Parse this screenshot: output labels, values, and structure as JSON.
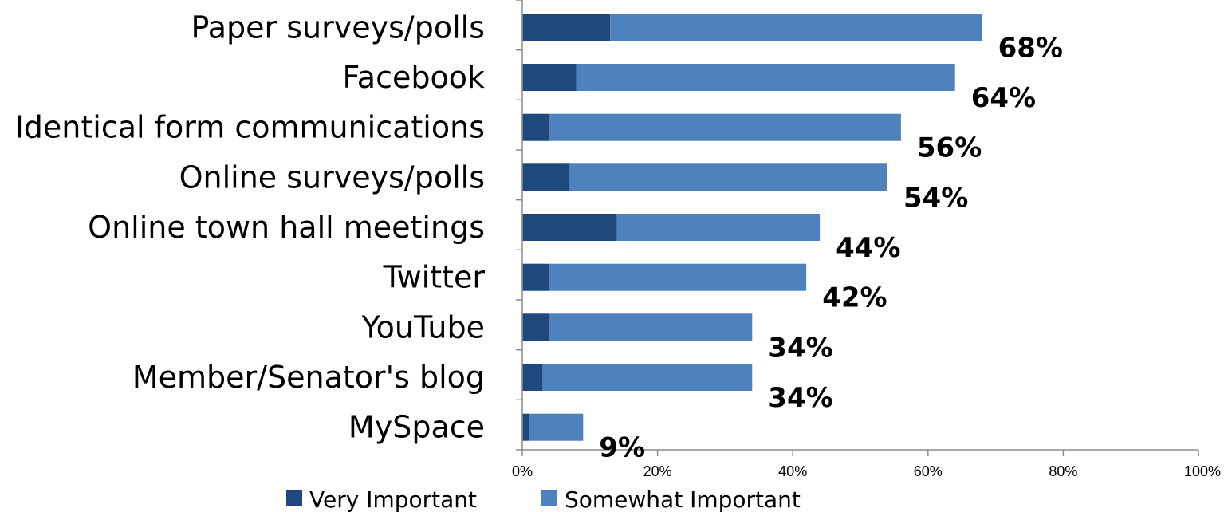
{
  "chart_data": {
    "type": "bar",
    "orientation": "horizontal",
    "stacked": true,
    "categories": [
      "Paper surveys/polls",
      "Facebook",
      "Identical form communications",
      "Online surveys/polls",
      "Online town hall meetings",
      "Twitter",
      "YouTube",
      "Member/Senator's blog",
      "MySpace"
    ],
    "series": [
      {
        "name": "Very Important",
        "color": "#1f497d",
        "values": [
          13,
          8,
          4,
          7,
          14,
          4,
          4,
          3,
          1
        ]
      },
      {
        "name": "Somewhat Important",
        "color": "#4f81bd",
        "values": [
          55,
          56,
          52,
          47,
          30,
          38,
          30,
          31,
          8
        ]
      }
    ],
    "totals": [
      68,
      64,
      56,
      54,
      44,
      42,
      34,
      34,
      9
    ],
    "data_labels": [
      "68%",
      "64%",
      "56%",
      "54%",
      "44%",
      "42%",
      "34%",
      "34%",
      "9%"
    ],
    "xlim": [
      0,
      100
    ],
    "xticks": [
      0,
      20,
      40,
      60,
      80,
      100
    ],
    "xtick_labels": [
      "0%",
      "20%",
      "40%",
      "60%",
      "80%",
      "100%"
    ],
    "grid": false,
    "legend_position": "bottom"
  }
}
